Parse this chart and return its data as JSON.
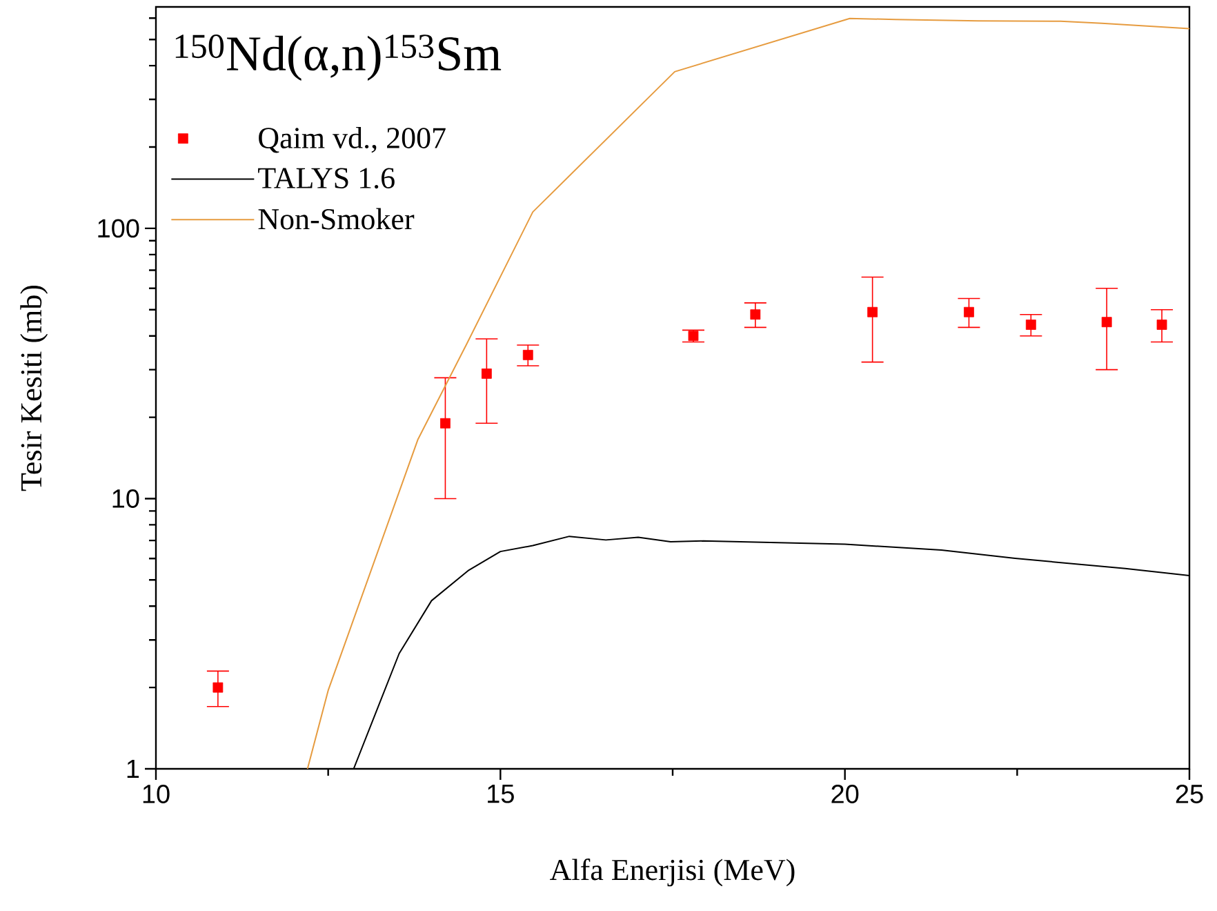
{
  "chart_data": {
    "type": "line",
    "title": "$^{150}$Nd(α,n)$^{153}$Sm",
    "xlabel": "Alfa Enerjisi (MeV)",
    "ylabel": "Tesir Kesiti (mb)",
    "xlim": [
      10,
      25
    ],
    "xticks": [
      10,
      15,
      20,
      25
    ],
    "ylim": [
      1,
      660
    ],
    "yticks": [
      1,
      10,
      100
    ],
    "log": "y",
    "legend": "top left",
    "series": [
      {
        "name": "Qaim vd., 2007",
        "type": "scatter",
        "marker": "square",
        "color": "#ff0000",
        "x": [
          10.9,
          14.2,
          14.8,
          15.4,
          17.8,
          18.7,
          20.4,
          21.8,
          22.7,
          23.8,
          24.6
        ],
        "values": [
          2.0,
          19,
          29,
          34,
          40,
          48,
          49,
          49,
          44,
          45,
          44
        ],
        "errors": [
          0.3,
          9,
          10,
          3,
          2,
          5,
          17,
          6,
          4,
          15,
          6
        ]
      },
      {
        "name": "TALYS 1.6",
        "color": "#000000",
        "x": [
          12.87,
          13.53,
          14.0,
          14.53,
          15.0,
          15.47,
          16.0,
          16.53,
          17.0,
          17.47,
          17.94,
          20.0,
          21.4,
          22.47,
          24.07,
          25.0
        ],
        "values": [
          1.0,
          2.67,
          4.19,
          5.41,
          6.37,
          6.7,
          7.25,
          7.03,
          7.19,
          6.92,
          6.97,
          6.78,
          6.45,
          6.01,
          5.51,
          5.19
        ]
      },
      {
        "name": "Non-Smoker",
        "color": "#e69b3f",
        "x": [
          12.2,
          12.5,
          13.8,
          14.5,
          15.47,
          17.53,
          20.07,
          20.73,
          21.93,
          23.13,
          23.73,
          25.0
        ],
        "values": [
          1.0,
          1.95,
          16.5,
          36.9,
          115,
          380,
          598,
          593,
          586,
          584,
          574,
          548
        ]
      }
    ]
  }
}
